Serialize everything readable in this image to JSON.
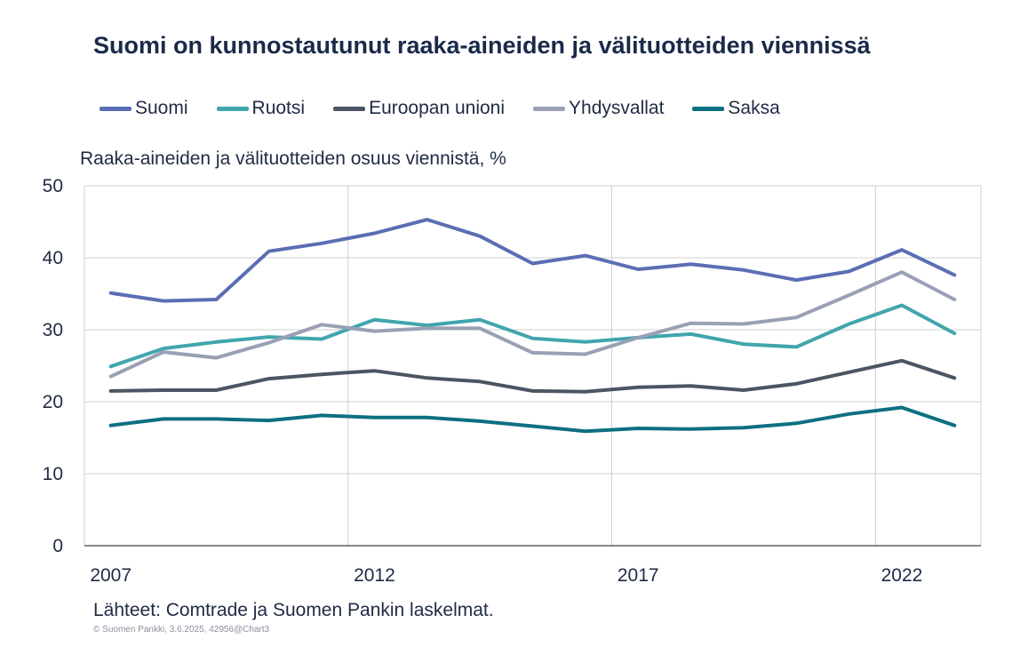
{
  "chart_data": {
    "type": "line",
    "title": "Suomi on kunnostautunut raaka-aineiden ja välituotteiden viennissä",
    "ylabel": "Raaka-aineiden ja välituotteiden  osuus viennistä, %",
    "xlabel": "",
    "ylim": [
      0,
      50
    ],
    "yticks": [
      0,
      10,
      20,
      30,
      40,
      50
    ],
    "xlim": [
      2006.5,
      2023.5
    ],
    "xticks": [
      2007,
      2012,
      2017,
      2022
    ],
    "x": [
      2007,
      2008,
      2009,
      2010,
      2011,
      2012,
      2013,
      2014,
      2015,
      2016,
      2017,
      2018,
      2019,
      2020,
      2021,
      2022,
      2023
    ],
    "grid": true,
    "legend_position": "top",
    "series": [
      {
        "name": "Suomi",
        "color": "#5b6eb4",
        "values": [
          35.1,
          34.0,
          34.2,
          40.9,
          42.0,
          43.4,
          45.3,
          43.0,
          39.2,
          40.3,
          38.4,
          39.1,
          38.3,
          36.9,
          38.1,
          41.1,
          37.6
        ]
      },
      {
        "name": "Ruotsi",
        "color": "#41a5ad",
        "values": [
          24.9,
          27.4,
          28.3,
          29.0,
          28.7,
          31.4,
          30.6,
          31.4,
          28.8,
          28.3,
          28.9,
          29.4,
          28.0,
          27.6,
          30.8,
          33.4,
          29.5
        ]
      },
      {
        "name": "Euroopan unioni",
        "color": "#4b5563",
        "values": [
          21.5,
          21.6,
          21.6,
          23.2,
          23.8,
          24.3,
          23.3,
          22.8,
          21.5,
          21.4,
          22.0,
          22.2,
          21.6,
          22.5,
          24.1,
          25.7,
          23.3
        ]
      },
      {
        "name": "Yhdysvallat",
        "color": "#9aa0b4",
        "values": [
          23.5,
          26.9,
          26.1,
          28.2,
          30.7,
          29.8,
          30.2,
          30.2,
          26.8,
          26.6,
          28.9,
          30.9,
          30.8,
          31.7,
          34.8,
          38.0,
          34.2
        ]
      },
      {
        "name": "Saksa",
        "color": "#0e6f82",
        "values": [
          16.7,
          17.6,
          17.6,
          17.4,
          18.1,
          17.8,
          17.8,
          17.3,
          16.6,
          15.9,
          16.3,
          16.2,
          16.4,
          17.0,
          18.3,
          19.2,
          16.7
        ]
      }
    ]
  },
  "footer": {
    "source": "Lähteet: Comtrade ja Suomen Pankin laskelmat.",
    "copyright": "© Suomen Pankki, 3.6.2025, 42956@Chart3"
  }
}
